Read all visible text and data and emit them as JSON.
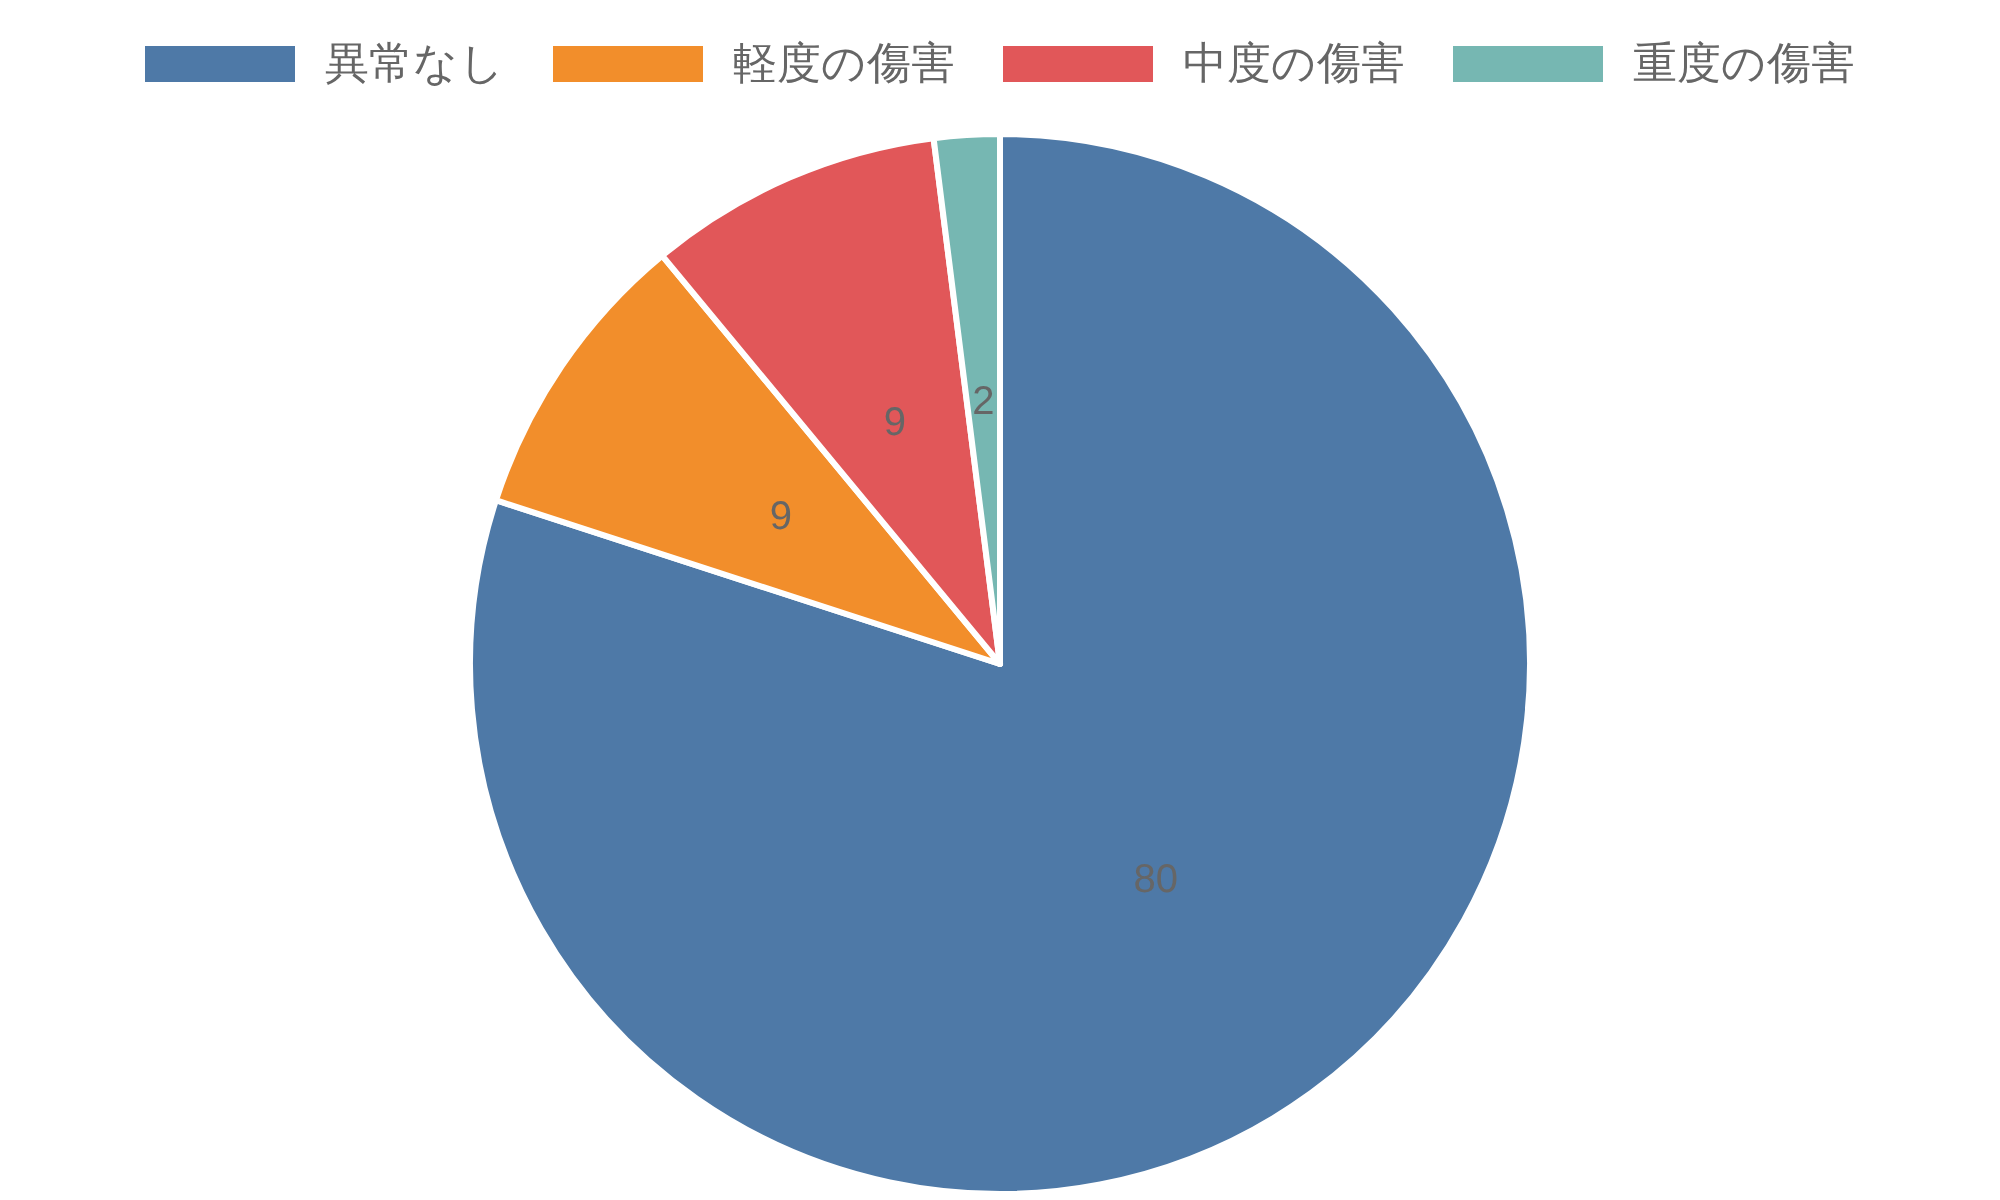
{
  "chart_data": {
    "type": "pie",
    "categories": [
      "異常なし",
      "軽度の傷害",
      "中度の傷害",
      "重度の傷害"
    ],
    "values": [
      80,
      9,
      9,
      2
    ],
    "colors": [
      "#4e79a7",
      "#f28e2b",
      "#e15759",
      "#76b7b2"
    ],
    "data_labels": true,
    "legend": "top"
  }
}
